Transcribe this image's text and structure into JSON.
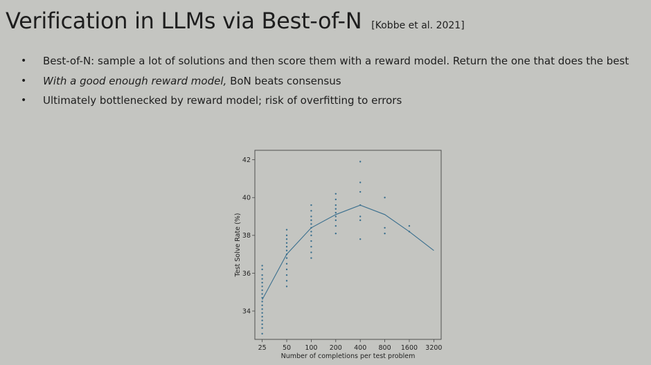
{
  "slide": {
    "title": "Verification in LLMs via Best-of-N",
    "citation": "[Kobbe et al. 2021]",
    "bullets": [
      {
        "pre": "",
        "emph": "",
        "text": "Best-of-N: sample a lot of solutions and then score them with a reward model. Return the one that does the best"
      },
      {
        "pre": "",
        "emph": "With a good enough reward model,",
        "text": " BoN beats consensus"
      },
      {
        "pre": "",
        "emph": "",
        "text": "Ultimately bottlenecked by reward model; risk of overfitting to errors"
      }
    ]
  },
  "chart_data": {
    "type": "scatter",
    "title": "",
    "xlabel": "Number of completions per test problem",
    "ylabel": "Test Solve Rate (%)",
    "x_scale": "log",
    "categories": [
      "25",
      "50",
      "100",
      "200",
      "400",
      "800",
      "1600",
      "3200"
    ],
    "xticks": [
      25,
      50,
      100,
      200,
      400,
      800,
      1600,
      3200
    ],
    "yticks": [
      34,
      36,
      38,
      40,
      42
    ],
    "ylim": [
      32.5,
      42.5
    ],
    "grid": false,
    "mean_line": {
      "x": [
        25,
        50,
        100,
        200,
        400,
        800,
        1600,
        3200
      ],
      "y": [
        34.6,
        37.0,
        38.4,
        39.1,
        39.6,
        39.1,
        38.2,
        37.2
      ]
    },
    "samples": [
      {
        "x": 25,
        "y": [
          32.8,
          33.1,
          33.3,
          33.5,
          33.7,
          33.9,
          34.1,
          34.3,
          34.5,
          34.7,
          34.9,
          35.1,
          35.3,
          35.5,
          35.7,
          35.9,
          36.2,
          36.4
        ]
      },
      {
        "x": 50,
        "y": [
          35.3,
          35.6,
          35.9,
          36.2,
          36.5,
          36.8,
          37.0,
          37.2,
          37.4,
          37.6,
          37.8,
          38.0,
          38.3
        ]
      },
      {
        "x": 100,
        "y": [
          36.8,
          37.1,
          37.4,
          37.7,
          38.0,
          38.2,
          38.4,
          38.6,
          38.8,
          39.0,
          39.3,
          39.6
        ]
      },
      {
        "x": 200,
        "y": [
          38.1,
          38.5,
          38.8,
          39.0,
          39.2,
          39.4,
          39.6,
          39.9,
          40.2
        ]
      },
      {
        "x": 400,
        "y": [
          37.8,
          38.8,
          39.0,
          39.6,
          40.3,
          40.8,
          41.9
        ]
      },
      {
        "x": 800,
        "y": [
          38.1,
          38.4,
          40.0
        ]
      },
      {
        "x": 1600,
        "y": [
          38.2,
          38.5
        ]
      }
    ],
    "colors": {
      "series": "#3a6f8e",
      "axis": "#444444"
    }
  }
}
